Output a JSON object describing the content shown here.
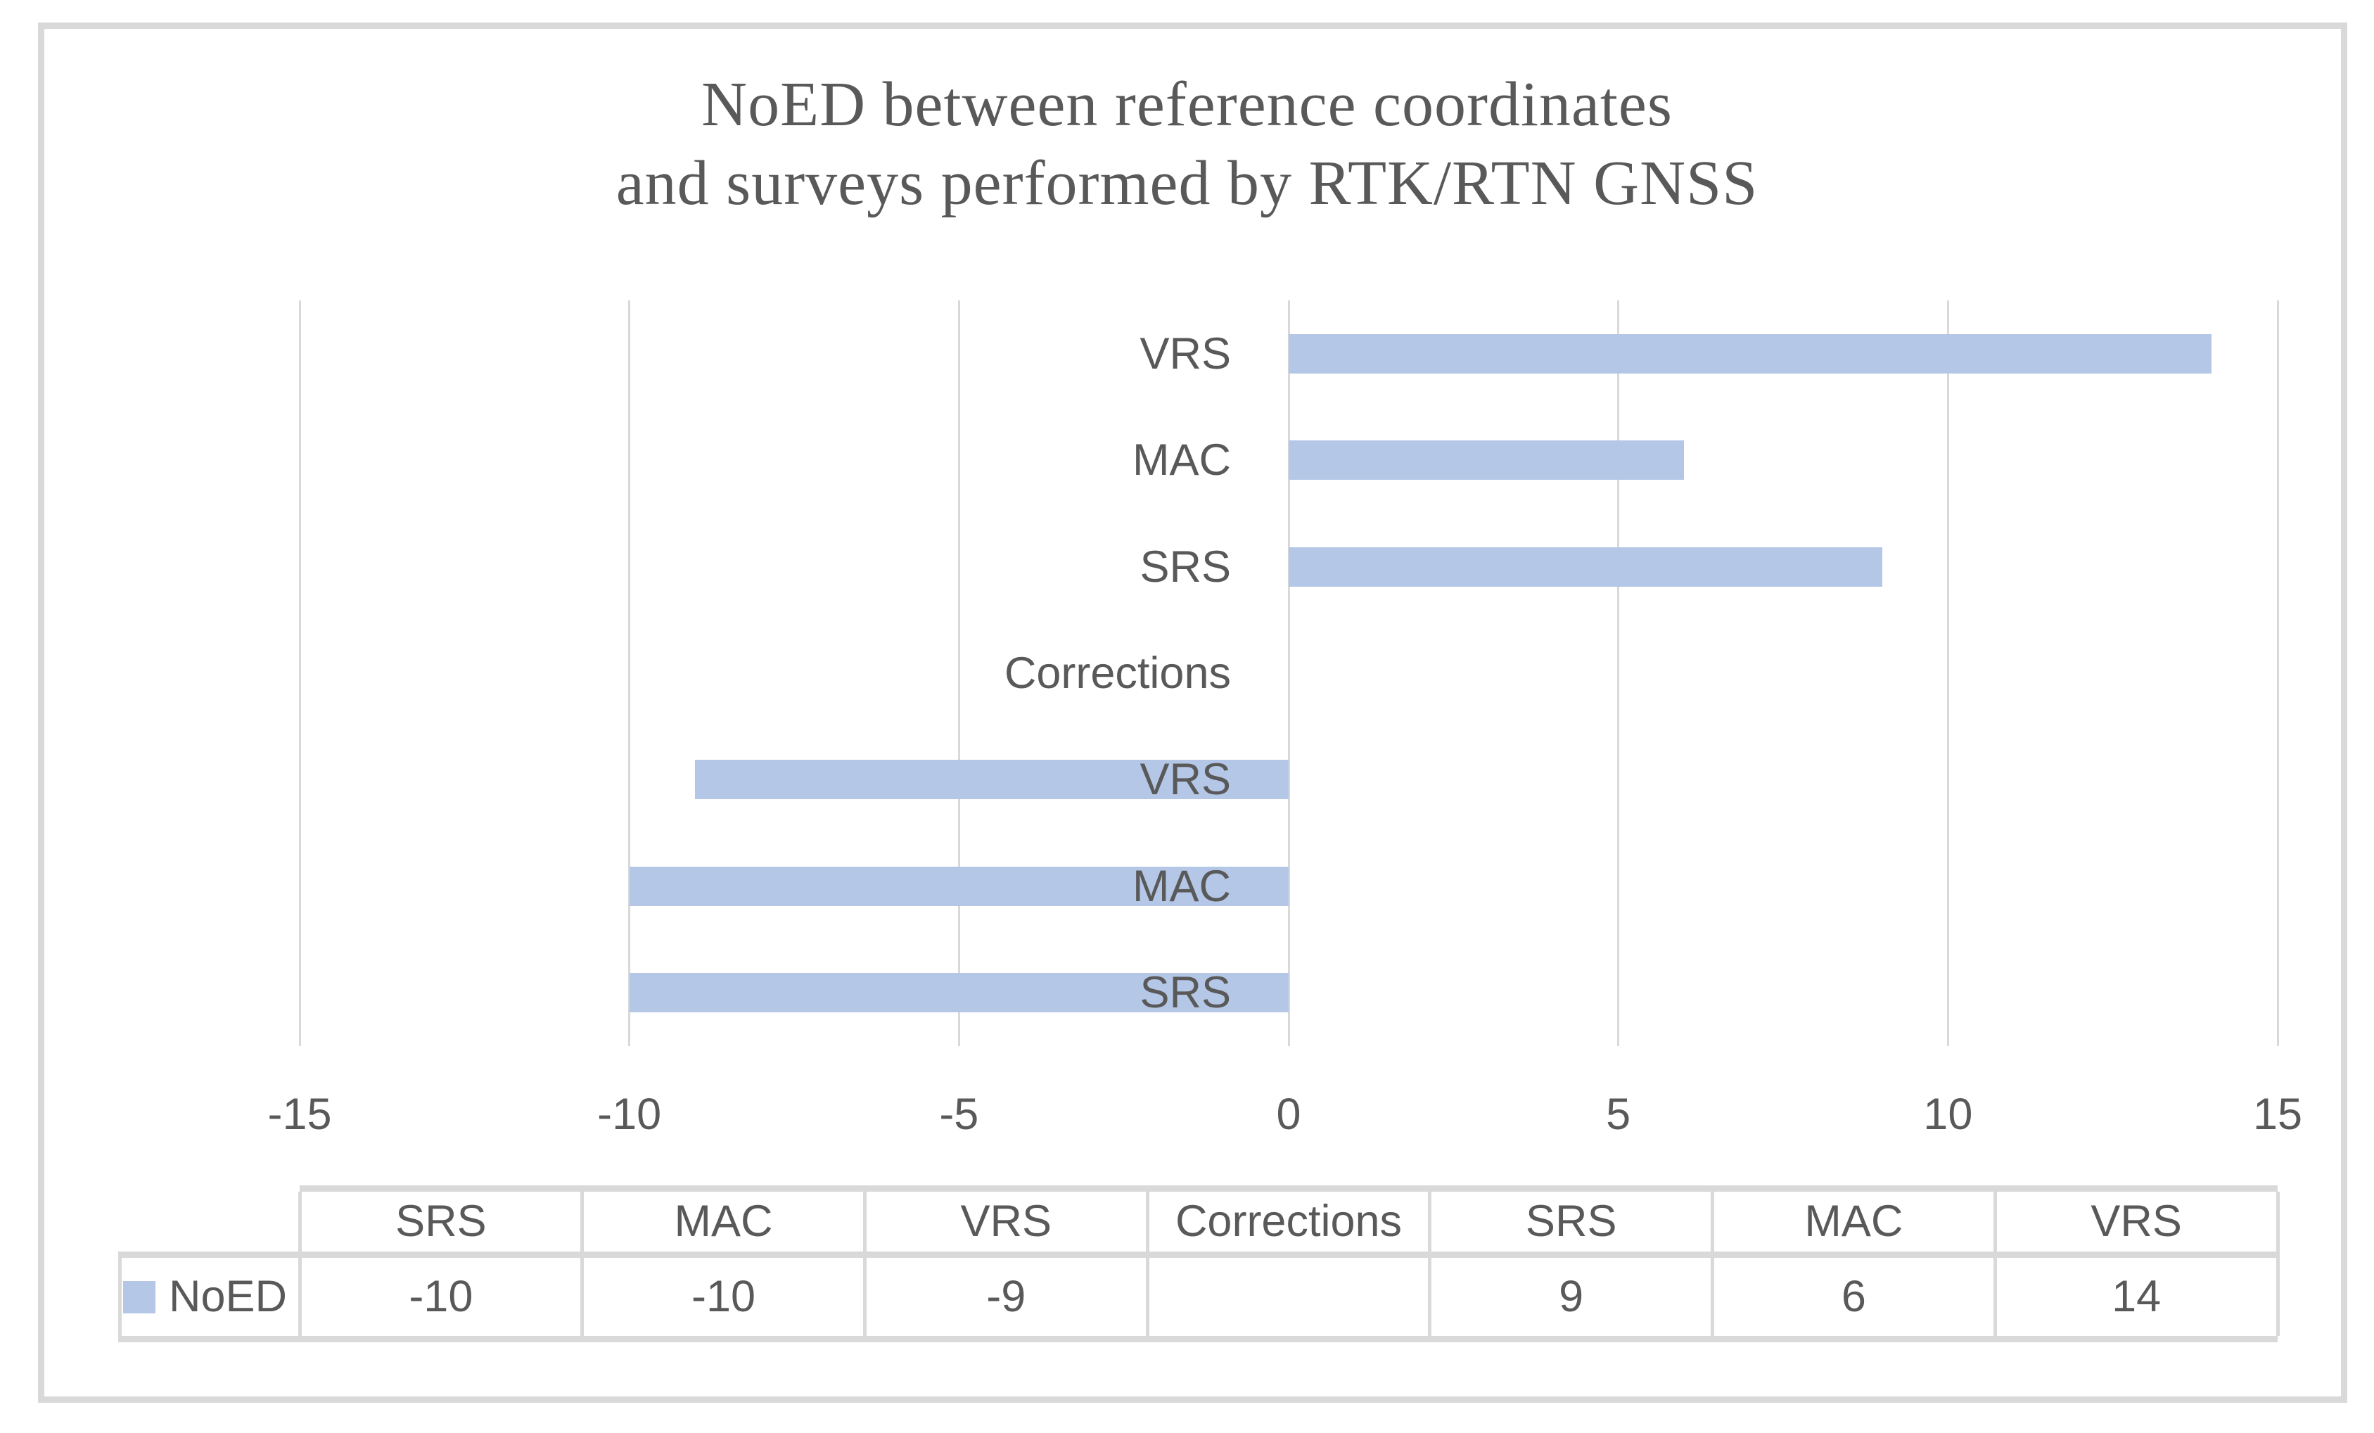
{
  "title": {
    "line1": "NoED between reference coordinates",
    "line2": "and surveys performed by RTK/RTN GNSS"
  },
  "chart_data": {
    "type": "bar",
    "orientation": "horizontal",
    "title": "NoED between reference coordinates and surveys performed by RTK/RTN GNSS",
    "categories_top_to_bottom": [
      "VRS",
      "MAC",
      "SRS",
      "Corrections",
      "VRS",
      "MAC",
      "SRS"
    ],
    "series": [
      {
        "name": "NoED",
        "values_top_to_bottom": [
          14,
          6,
          9,
          null,
          -9,
          -10,
          -10
        ]
      }
    ],
    "xlim": [
      -15,
      15
    ],
    "x_ticks": [
      "-15",
      "-10",
      "-5",
      "0",
      "5",
      "10",
      "15"
    ],
    "grid": "vertical gridlines on",
    "legend_position": "data-table-left",
    "bar_color": "#b4c7e7"
  },
  "data_table": {
    "row_label": "NoED",
    "legend_swatch_color": "#b4c7e7",
    "column_headers": [
      "SRS",
      "MAC",
      "VRS",
      "Corrections",
      "SRS",
      "MAC",
      "VRS"
    ],
    "row_values": [
      "-10",
      "-10",
      "-9",
      "",
      "9",
      "6",
      "14"
    ]
  },
  "colors": {
    "bar": "#b4c7e7",
    "gridline": "#d9d9d9",
    "table_border": "#d9d9d9",
    "text": "#595959",
    "frame_border": "#d9d9d9",
    "background": "#ffffff"
  }
}
